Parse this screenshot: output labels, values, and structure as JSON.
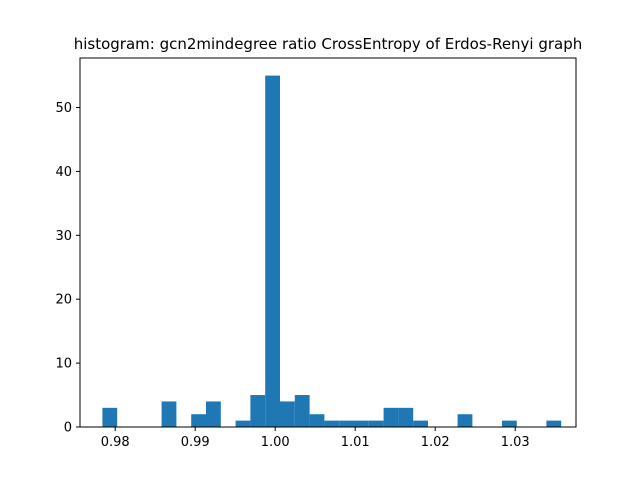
{
  "chart_data": {
    "type": "bar",
    "title": "histogram: gcn2mindegree ratio CrossEntropy of Erdos-Renyi graph",
    "xlabel": "",
    "ylabel": "",
    "xlim": [
      0.9756,
      1.0376
    ],
    "ylim": [
      0,
      57.75
    ],
    "x_ticks": [
      0.98,
      0.99,
      1.0,
      1.01,
      1.02,
      1.03
    ],
    "x_tick_labels": [
      "0.98",
      "0.99",
      "1.00",
      "1.01",
      "1.02",
      "1.03"
    ],
    "y_ticks": [
      0,
      10,
      20,
      30,
      40,
      50
    ],
    "y_tick_labels": [
      "0",
      "10",
      "20",
      "30",
      "40",
      "50"
    ],
    "bin_edges": [
      0.9784,
      0.98025,
      0.9821,
      0.98395,
      0.9858,
      0.98765,
      0.9895,
      0.99135,
      0.9932,
      0.99505,
      0.9969,
      0.99875,
      1.0006,
      1.00245,
      1.0043,
      1.00615,
      1.008,
      1.00985,
      1.0117,
      1.01355,
      1.0154,
      1.01725,
      1.0191,
      1.02095,
      1.0228,
      1.02465,
      1.0265,
      1.02835,
      1.0302,
      1.03205,
      1.0339,
      1.03575
    ],
    "values": [
      3,
      0,
      0,
      0,
      4,
      0,
      2,
      4,
      0,
      1,
      5,
      55,
      4,
      5,
      2,
      1,
      1,
      1,
      1,
      3,
      3,
      1,
      0,
      0,
      2,
      0,
      0,
      1,
      0,
      0,
      1
    ],
    "bar_color": "#1f77b4",
    "grid": false,
    "legend": "none"
  }
}
